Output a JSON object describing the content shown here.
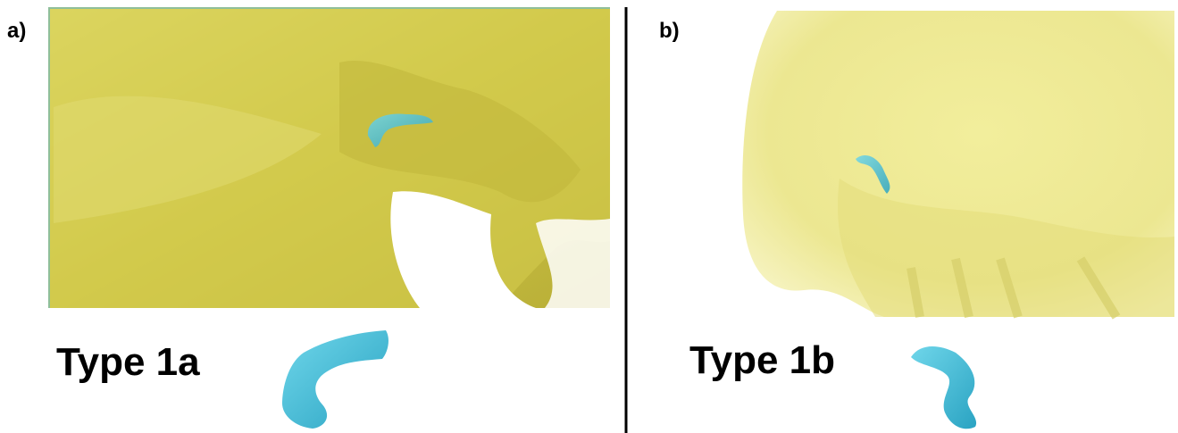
{
  "panels": [
    {
      "label": "a)",
      "caption": "Type 1a"
    },
    {
      "label": "b)",
      "caption": "Type 1b"
    }
  ]
}
